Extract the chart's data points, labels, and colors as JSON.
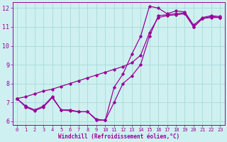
{
  "title": "",
  "xlabel": "Windchill (Refroidissement éolien,°C)",
  "ylabel": "",
  "bg_color": "#cff0f0",
  "line_color": "#990099",
  "grid_color": "#aadddd",
  "xlim": [
    -0.5,
    23.5
  ],
  "ylim": [
    5.8,
    12.3
  ],
  "xticks": [
    0,
    1,
    2,
    3,
    4,
    5,
    6,
    7,
    8,
    9,
    10,
    11,
    12,
    13,
    14,
    15,
    16,
    17,
    18,
    19,
    20,
    21,
    22,
    23
  ],
  "yticks": [
    6,
    7,
    8,
    9,
    10,
    11,
    12
  ],
  "line1_x": [
    0,
    1,
    2,
    3,
    4,
    5,
    6,
    7,
    8,
    9,
    10,
    11,
    12,
    13,
    14,
    15,
    16,
    17,
    18,
    19,
    20,
    21,
    22,
    23
  ],
  "line1_y": [
    7.2,
    6.8,
    6.6,
    6.8,
    7.3,
    6.6,
    6.6,
    6.5,
    6.5,
    6.1,
    6.05,
    7.8,
    8.5,
    9.55,
    10.5,
    12.1,
    12.0,
    11.7,
    11.85,
    11.8,
    11.1,
    11.5,
    11.6,
    11.55
  ],
  "line2_x": [
    0,
    1,
    2,
    3,
    4,
    5,
    6,
    7,
    8,
    9,
    10,
    11,
    12,
    13,
    14,
    15,
    16,
    17,
    18,
    19,
    20,
    21,
    22,
    23
  ],
  "line2_y": [
    7.2,
    6.75,
    6.55,
    6.75,
    7.25,
    6.6,
    6.55,
    6.5,
    6.5,
    6.05,
    6.05,
    7.0,
    8.0,
    8.4,
    9.0,
    10.5,
    11.6,
    11.65,
    11.7,
    11.75,
    11.0,
    11.45,
    11.5,
    11.5
  ],
  "line3_x": [
    0,
    1,
    2,
    3,
    4,
    5,
    6,
    7,
    8,
    9,
    10,
    11,
    12,
    13,
    14,
    15,
    16,
    17,
    18,
    19,
    20,
    21,
    22,
    23
  ],
  "line3_y": [
    7.2,
    7.3,
    7.45,
    7.6,
    7.7,
    7.85,
    8.0,
    8.15,
    8.3,
    8.45,
    8.6,
    8.75,
    8.9,
    9.1,
    9.5,
    10.7,
    11.5,
    11.6,
    11.65,
    11.7,
    11.0,
    11.45,
    11.55,
    11.5
  ]
}
